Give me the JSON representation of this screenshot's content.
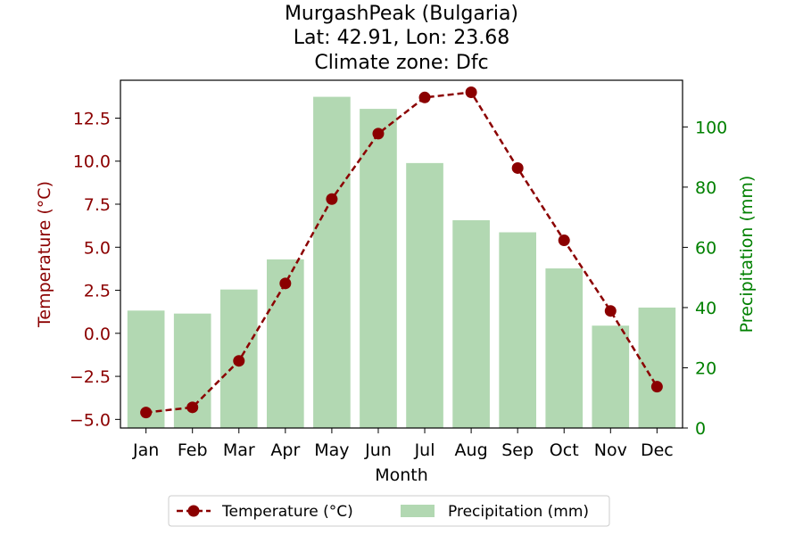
{
  "chart_data": {
    "type": "bar+line",
    "title_lines": [
      "MurgashPeak (Bulgaria)",
      "Lat: 42.91, Lon: 23.68",
      "Climate zone: Dfc"
    ],
    "xlabel": "Month",
    "ylabel_left": "Temperature (°C)",
    "ylabel_right": "Precipitation (mm)",
    "categories": [
      "Jan",
      "Feb",
      "Mar",
      "Apr",
      "May",
      "Jun",
      "Jul",
      "Aug",
      "Sep",
      "Oct",
      "Nov",
      "Dec"
    ],
    "temperature": {
      "name": "Temperature (°C)",
      "axis": "left",
      "values": [
        -4.6,
        -4.3,
        -1.6,
        2.9,
        7.8,
        11.6,
        13.7,
        14.0,
        9.6,
        5.4,
        1.3,
        -3.1
      ]
    },
    "precipitation": {
      "name": "Precipitation (mm)",
      "axis": "right",
      "values": [
        39,
        38,
        46,
        56,
        110,
        106,
        88,
        69,
        65,
        53,
        34,
        40
      ]
    },
    "y_left_lim": [
      -5.5,
      14.7
    ],
    "y_left_ticks": [
      -5.0,
      -2.5,
      0.0,
      2.5,
      5.0,
      7.5,
      10.0,
      12.5
    ],
    "y_left_tick_labels": [
      "−5.0",
      "−2.5",
      "0.0",
      "2.5",
      "5.0",
      "7.5",
      "10.0",
      "12.5"
    ],
    "y_right_lim": [
      0,
      115.5
    ],
    "y_right_ticks": [
      0,
      20,
      40,
      60,
      80,
      100
    ],
    "y_right_tick_labels": [
      "0",
      "20",
      "40",
      "60",
      "80",
      "100"
    ],
    "legend_position": "bottom-center",
    "grid": false,
    "colors": {
      "temperature": "#8b0000",
      "precipitation": "#b2d8b2",
      "left_axis": "#8b0000",
      "right_axis": "#008000"
    }
  }
}
